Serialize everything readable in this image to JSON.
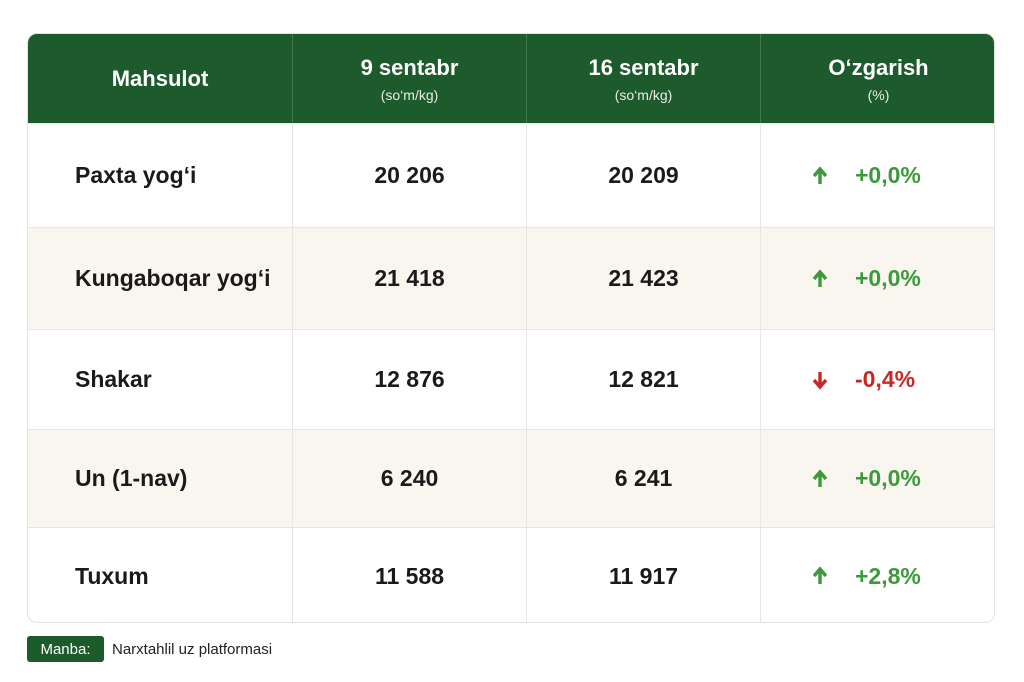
{
  "table": {
    "columns": [
      {
        "title": "Mahsulot"
      },
      {
        "title": "9 sentabr",
        "unit": "(so‘m/kg)"
      },
      {
        "title": "16 sentabr",
        "unit": "(so‘m/kg)"
      },
      {
        "title": "O‘zgarish",
        "unit": "(%)"
      }
    ],
    "rows": [
      [
        "Paxta yog‘i",
        "20 206",
        "20 209",
        "+0,0%"
      ],
      [
        "Kungaboqar yog‘i",
        "21 418",
        "21 423",
        "+0,0%"
      ],
      [
        "Shakar",
        "12 876",
        "12 821",
        "-0,4%"
      ],
      [
        "Un (1-nav)",
        "6 240",
        "6 241",
        "+0,0%"
      ],
      [
        "Tuxum",
        "11 588",
        "11 917",
        "+2,8%"
      ]
    ]
  },
  "footer": {
    "badge": "Manba:",
    "text": "Narxtahlil uz platformasi"
  }
}
